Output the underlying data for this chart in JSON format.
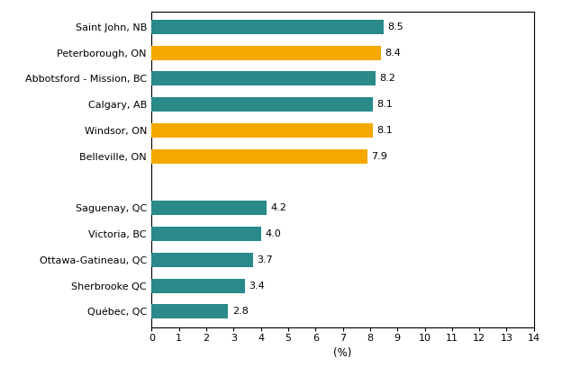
{
  "categories": [
    "Québec, QC",
    "Sherbrooke QC",
    "Ottawa-Gatineau, QC",
    "Victoria, BC",
    "Saguenay, QC",
    "",
    "Belleville, ON",
    "Windsor, ON",
    "Calgary, AB",
    "Abbotsford - Mission, BC",
    "Peterborough, ON",
    "Saint John, NB"
  ],
  "values": [
    2.8,
    3.4,
    3.7,
    4.0,
    4.2,
    0,
    7.9,
    8.1,
    8.1,
    8.2,
    8.4,
    8.5
  ],
  "colors": [
    "#2a8a8a",
    "#2a8a8a",
    "#2a8a8a",
    "#2a8a8a",
    "#2a8a8a",
    "#ffffff",
    "#f5a800",
    "#f5a800",
    "#2a8a8a",
    "#2a8a8a",
    "#f5a800",
    "#2a8a8a"
  ],
  "value_labels": [
    "2.8",
    "3.4",
    "3.7",
    "4.0",
    "4.2",
    "",
    "7.9",
    "8.1",
    "8.1",
    "8.2",
    "8.4",
    "8.5"
  ],
  "xlabel": "(%)",
  "xlim": [
    0,
    14
  ],
  "xticks": [
    0,
    1,
    2,
    3,
    4,
    5,
    6,
    7,
    8,
    9,
    10,
    11,
    12,
    13,
    14
  ],
  "bar_height": 0.55,
  "figsize": [
    6.24,
    4.18
  ],
  "dpi": 100,
  "teal_color": "#2a8a8a",
  "gold_color": "#f5a800",
  "label_fontsize": 8.0,
  "tick_fontsize": 8.0,
  "xlabel_fontsize": 8.5
}
